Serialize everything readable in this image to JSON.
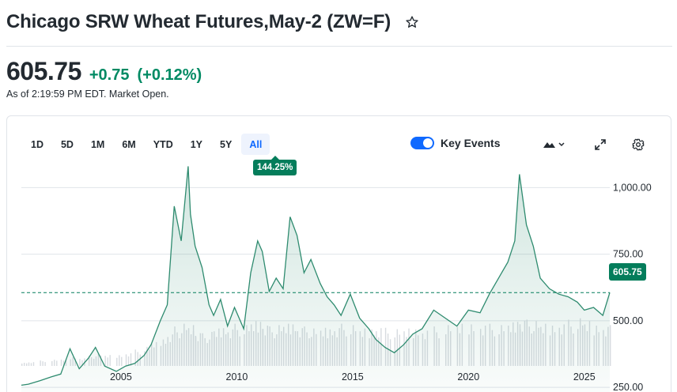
{
  "header": {
    "title": "Chicago SRW Wheat Futures,May-2 (ZW=F)",
    "top_clip_text": "",
    "price": "605.75",
    "change": "+0.75",
    "change_pct": "(+0.12%)",
    "as_of": "As of 2:19:59 PM EDT. Market Open."
  },
  "colors": {
    "positive": "#008a63",
    "accent": "#0f69ff",
    "line": "#2e8b6f",
    "tag_bg": "#047d5b"
  },
  "toolbar": {
    "ranges": [
      "1D",
      "5D",
      "1M",
      "6M",
      "YTD",
      "1Y",
      "5Y",
      "All"
    ],
    "active_range": "All",
    "range_change": "144.25%",
    "key_events_label": "Key Events",
    "key_events_on": true,
    "icons": [
      "mountain-chart-icon",
      "expand-icon",
      "gear-icon"
    ]
  },
  "chart_data": {
    "type": "area",
    "xlabel": "",
    "ylabel": "",
    "x_ticks": [
      "2005",
      "2010",
      "2015",
      "2020",
      "2025"
    ],
    "y_ticks": [
      "1,000.00",
      "750.00",
      "500.00",
      "250.00"
    ],
    "ylim": [
      200,
      1090
    ],
    "current_value_label": "605.75",
    "current_value": 605.75,
    "grid": true,
    "x": [
      2000.7,
      2001.0,
      2001.5,
      2002.0,
      2002.4,
      2002.8,
      2003.2,
      2003.6,
      2003.9,
      2004.3,
      2004.8,
      2005.2,
      2005.6,
      2006.0,
      2006.3,
      2006.7,
      2007.0,
      2007.3,
      2007.6,
      2007.9,
      2008.0,
      2008.2,
      2008.5,
      2008.8,
      2009.0,
      2009.3,
      2009.6,
      2009.9,
      2010.3,
      2010.6,
      2010.9,
      2011.1,
      2011.4,
      2011.7,
      2012.0,
      2012.3,
      2012.6,
      2012.9,
      2013.2,
      2013.6,
      2013.9,
      2014.2,
      2014.5,
      2014.9,
      2015.3,
      2015.7,
      2016.0,
      2016.4,
      2016.8,
      2017.2,
      2017.6,
      2018.0,
      2018.5,
      2019.0,
      2019.5,
      2020.0,
      2020.5,
      2020.9,
      2021.3,
      2021.7,
      2022.0,
      2022.2,
      2022.5,
      2022.8,
      2023.1,
      2023.5,
      2023.9,
      2024.3,
      2024.7,
      2025.0,
      2025.4,
      2025.8,
      2026.1
    ],
    "values": [
      258,
      262,
      275,
      290,
      300,
      395,
      320,
      360,
      400,
      330,
      310,
      330,
      340,
      370,
      410,
      500,
      560,
      930,
      800,
      1080,
      900,
      780,
      700,
      560,
      520,
      580,
      480,
      550,
      470,
      680,
      800,
      760,
      610,
      660,
      620,
      890,
      820,
      680,
      730,
      640,
      590,
      560,
      520,
      600,
      510,
      470,
      430,
      400,
      380,
      410,
      450,
      470,
      540,
      510,
      480,
      540,
      530,
      600,
      660,
      720,
      800,
      1050,
      860,
      780,
      660,
      620,
      600,
      590,
      570,
      540,
      550,
      520,
      605.75
    ],
    "volume": [
      5,
      6,
      8,
      9,
      10,
      14,
      12,
      15,
      18,
      16,
      17,
      20,
      24,
      28,
      35,
      42,
      50,
      58,
      62,
      60,
      55,
      52,
      48,
      50,
      55,
      60,
      58,
      62,
      60,
      66,
      70,
      64,
      58,
      60,
      62,
      66,
      60,
      58,
      55,
      56,
      58,
      60,
      62,
      60,
      55,
      58,
      60,
      56,
      54,
      55,
      58,
      56,
      58,
      60,
      62,
      66,
      64,
      62,
      60,
      64,
      70,
      72,
      68,
      66,
      62,
      64,
      66,
      68,
      70,
      66,
      64,
      62,
      60
    ]
  }
}
